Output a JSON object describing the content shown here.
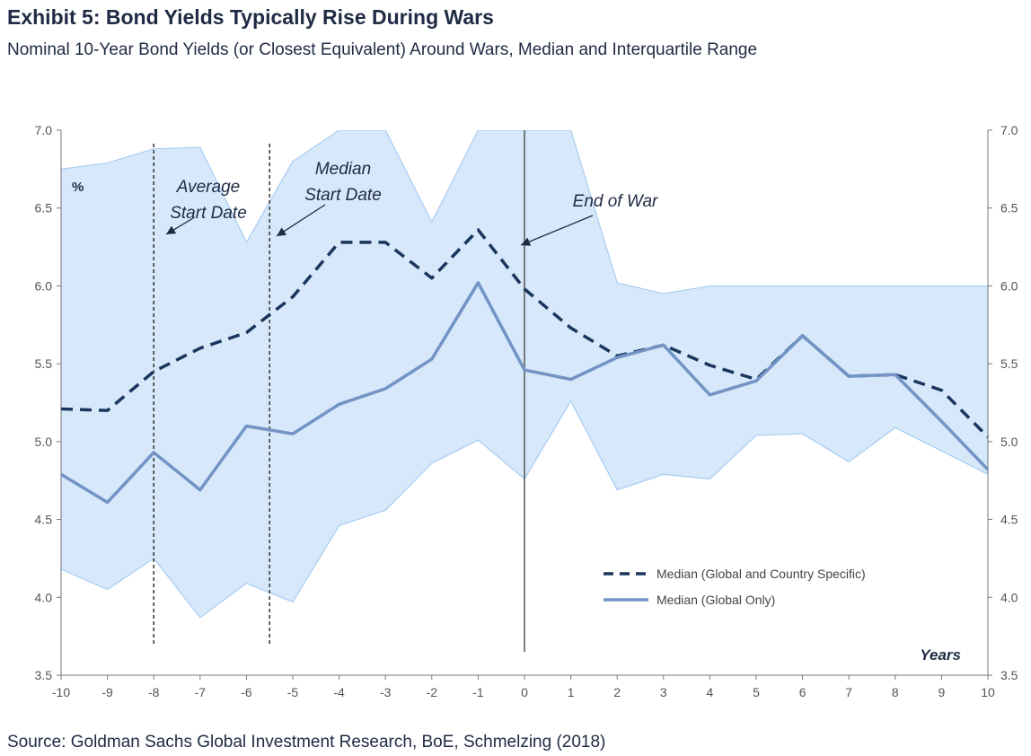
{
  "header": {
    "title": "Exhibit 5: Bond Yields Typically Rise During Wars",
    "subtitle": "Nominal 10-Year Bond Yields (or Closest Equivalent) Around Wars, Median and Interquartile Range"
  },
  "footer": {
    "source": "Source: Goldman Sachs Global Investment Research, BoE, Schmelzing (2018)"
  },
  "chart_data": {
    "type": "line",
    "x": [
      -10,
      -9,
      -8,
      -7,
      -6,
      -5,
      -4,
      -3,
      -2,
      -1,
      0,
      1,
      2,
      3,
      4,
      5,
      6,
      7,
      8,
      9,
      10
    ],
    "xlabel": "Years",
    "ylabel": "%",
    "ylim": [
      3.5,
      7.0
    ],
    "yticks": [
      "3.5",
      "4.0",
      "4.5",
      "5.0",
      "5.5",
      "6.0",
      "6.5",
      "7.0"
    ],
    "series": [
      {
        "name": "Median (Global and Country Specific)",
        "style": "dashed",
        "color": "#1b365d",
        "values": [
          5.21,
          5.2,
          5.45,
          5.6,
          5.7,
          5.93,
          6.28,
          6.28,
          6.05,
          6.36,
          5.98,
          5.73,
          5.55,
          5.62,
          5.49,
          5.4,
          5.68,
          5.42,
          5.43,
          5.33,
          5.03
        ]
      },
      {
        "name": "Median (Global Only)",
        "style": "solid",
        "color": "#7293c4",
        "values": [
          4.79,
          4.61,
          4.93,
          4.69,
          5.1,
          5.05,
          5.24,
          5.34,
          5.53,
          6.02,
          5.46,
          5.4,
          5.54,
          5.62,
          5.3,
          5.39,
          5.68,
          5.42,
          5.43,
          5.13,
          4.82
        ]
      }
    ],
    "band": {
      "color": "#d6e8fa",
      "edge_color": "#a9cdf0",
      "x": [
        -10,
        -9,
        -8,
        -7,
        -6,
        -5,
        -4,
        -3,
        -2,
        -1,
        0,
        1,
        2,
        3,
        4,
        5,
        6,
        7,
        8,
        9,
        10
      ],
      "upper": [
        6.75,
        6.79,
        6.88,
        6.89,
        6.28,
        6.8,
        7.0,
        7.0,
        6.41,
        7.0,
        7.0,
        7.0,
        6.02,
        5.95,
        6.0,
        6.0,
        6.0,
        6.0,
        6.0,
        6.0,
        6.0
      ],
      "lower": [
        4.18,
        4.05,
        4.25,
        3.87,
        4.09,
        3.97,
        4.46,
        4.56,
        4.86,
        5.01,
        4.76,
        5.26,
        4.69,
        4.79,
        4.76,
        5.04,
        5.05,
        4.87,
        5.09,
        4.94,
        4.79
      ]
    },
    "vlines": [
      {
        "x": -8,
        "style": "dotted",
        "label": [
          "Average",
          "Start Date"
        ]
      },
      {
        "x": -5.5,
        "style": "dotted",
        "label": [
          "Median",
          "Start Date"
        ]
      },
      {
        "x": 0,
        "style": "solid",
        "label": [
          "End of War"
        ]
      }
    ],
    "legend": "lower-right",
    "grid": false,
    "dual_axis": true
  }
}
